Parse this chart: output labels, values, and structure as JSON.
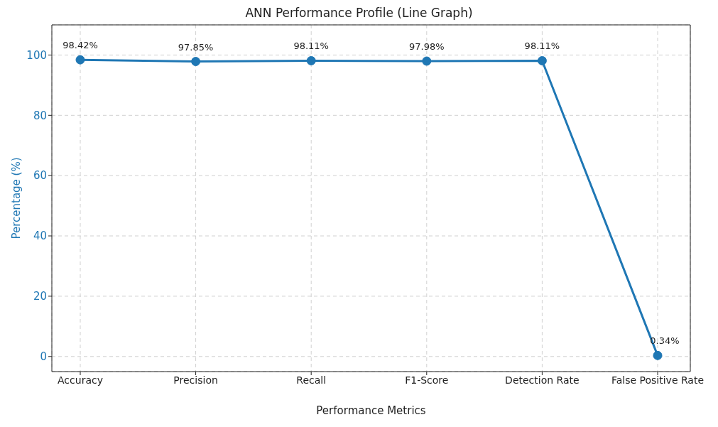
{
  "chart_data": {
    "type": "line",
    "title": "ANN Performance Profile (Line Graph)",
    "xlabel": "Performance Metrics",
    "ylabel": "Percentage (%)",
    "categories": [
      "Accuracy",
      "Precision",
      "Recall",
      "F1-Score",
      "Detection Rate",
      "False Positive Rate"
    ],
    "series": [
      {
        "color": "#1f77b4",
        "values": [
          98.42,
          97.85,
          98.11,
          97.98,
          98.11,
          0.34
        ],
        "value_labels": [
          "98.42%",
          "97.85%",
          "98.11%",
          "97.98%",
          "98.11%",
          "0.34%"
        ]
      }
    ],
    "ylim": [
      -5,
      110
    ],
    "yticks": [
      0,
      20,
      40,
      60,
      80,
      100
    ],
    "grid": true,
    "legend": false,
    "marker": "circle",
    "line_style": "solid"
  }
}
